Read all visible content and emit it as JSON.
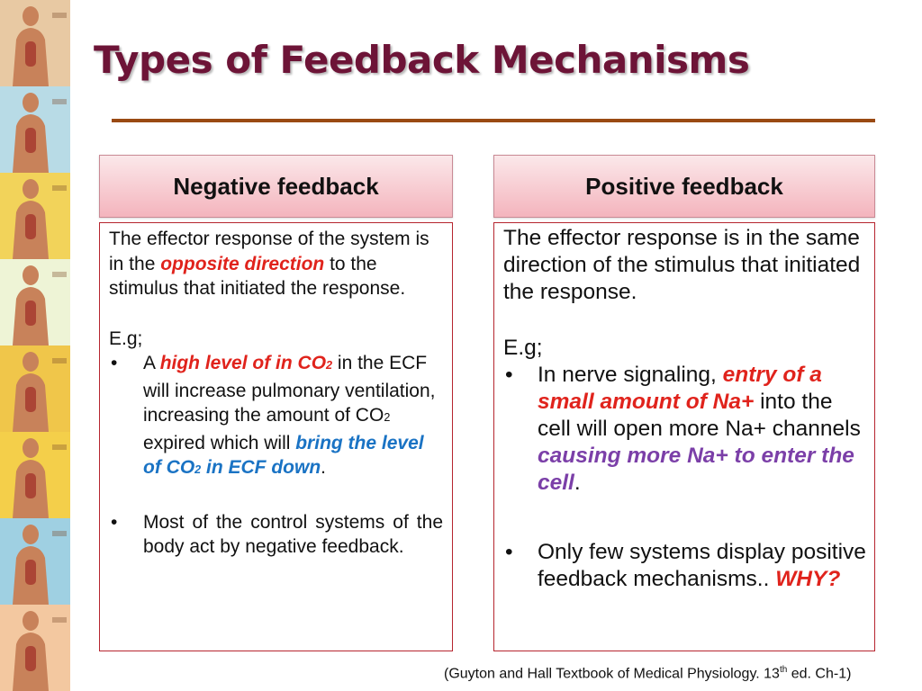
{
  "slide": {
    "title": "Types of Feedback Mechanisms",
    "sidebar": {
      "panels": [
        {
          "name": "digestive-system",
          "color": "#e8c9a3"
        },
        {
          "name": "respiratory-system",
          "color": "#b8dbe6"
        },
        {
          "name": "circulatory-system",
          "color": "#f2d35a"
        },
        {
          "name": "skeletal-system",
          "color": "#eef4d6"
        },
        {
          "name": "muscular-system",
          "color": "#f0c64a"
        },
        {
          "name": "nervous-system",
          "color": "#f4cf4a"
        },
        {
          "name": "endocrine-system",
          "color": "#9fd0e2"
        },
        {
          "name": "reproductive-system",
          "color": "#f3c8a0"
        }
      ]
    }
  },
  "negative": {
    "header": "Negative feedback",
    "def_1": "The effector response of the system is in the ",
    "def_em": "opposite direction",
    "def_2": " to the stimulus that initiated the response.",
    "eg": "E.g;",
    "bullet": "•",
    "b1_a": "A ",
    "b1_red": "high level of in CO",
    "b1_red_sub": "2",
    "b1_b": " in the ECF will increase pulmonary ventilation, increasing the amount of CO",
    "b1_b_sub": "2",
    "b1_c": " expired which will ",
    "b1_blue_1": "bring the level of CO",
    "b1_blue_sub": "2",
    "b1_blue_2": " in ECF down",
    "b1_end": ".",
    "b2": "Most of the control systems of the body act by negative feedback."
  },
  "positive": {
    "header": "Positive feedback",
    "def": "The effector response is in the same direction of the stimulus that initiated the response.",
    "eg": "E.g;",
    "bullet": "•",
    "b1_a": "In nerve signaling, ",
    "b1_red": "entry of a small amount of Na+",
    "b1_b": " into the cell will open more Na+ channels ",
    "b1_purple": "causing more Na+ to enter the cell",
    "b1_end": ".",
    "b2_a": "Only few systems display positive feedback mechanisms.. ",
    "b2_red": "WHY?"
  },
  "citation": {
    "pre": "(Guyton and Hall Textbook of Medical Physiology. 13",
    "sup": "th",
    "post": " ed. Ch-1)"
  }
}
